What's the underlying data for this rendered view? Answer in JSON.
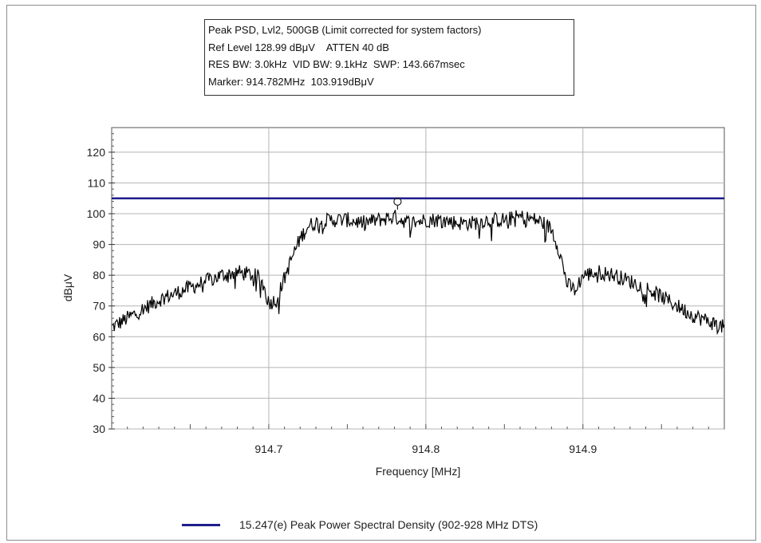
{
  "info": {
    "lines": [
      "Peak PSD, Lvl2, 500GB (Limit corrected for system factors)",
      "Ref Level 128.99 dBμV    ATTEN 40 dB",
      "RES BW: 3.0kHz  VID BW: 9.1kHz  SWP: 143.667msec",
      "Marker: 914.782MHz  103.919dBμV"
    ]
  },
  "legend": {
    "label": "15.247(e) Peak Power Spectral Density (902-928 MHz DTS)",
    "color": "#1e1e8c"
  },
  "chart_data": {
    "type": "line",
    "xlabel": "Frequency [MHz]",
    "ylabel": "dBμV",
    "xlim": [
      914.6,
      914.99
    ],
    "ylim": [
      30,
      128
    ],
    "grid": true,
    "x_tick_values": [
      914.7,
      914.8,
      914.9
    ],
    "x_tick_labels": [
      "914.7",
      "914.8",
      "914.9"
    ],
    "y_tick_values": [
      30,
      40,
      50,
      60,
      70,
      80,
      90,
      100,
      110,
      120
    ],
    "y_tick_labels": [
      "30",
      "40",
      "50",
      "60",
      "70",
      "80",
      "90",
      "100",
      "110",
      "120"
    ],
    "trace_color": "#000000",
    "series": [
      {
        "x": [
          914.6,
          914.61,
          914.62,
          914.63,
          914.64,
          914.65,
          914.66,
          914.67,
          914.68,
          914.69,
          914.695,
          914.7,
          914.705,
          914.71,
          914.715,
          914.72,
          914.725,
          914.73,
          914.74,
          914.75,
          914.76,
          914.77,
          914.78,
          914.79,
          914.8,
          914.81,
          914.82,
          914.83,
          914.84,
          914.85,
          914.86,
          914.87,
          914.875,
          914.88,
          914.885,
          914.89,
          914.895,
          914.9,
          914.91,
          914.92,
          914.93,
          914.94,
          914.95,
          914.96,
          914.97,
          914.98,
          914.99
        ],
        "y": [
          63,
          66,
          69,
          72,
          74,
          76,
          78,
          80,
          81,
          80,
          79,
          71,
          72,
          79,
          86,
          92,
          96,
          97,
          98,
          98,
          97,
          98,
          99,
          97,
          98,
          98,
          97,
          97,
          98,
          98,
          99,
          98,
          97,
          95,
          88,
          77,
          75,
          80,
          81,
          80,
          78,
          76,
          73,
          70,
          67,
          65,
          63
        ]
      },
      {
        "name": "15.247(e) Peak Power Spectral Density (902-928 MHz DTS)",
        "x": [
          914.6,
          914.99
        ],
        "y": [
          105,
          105
        ]
      }
    ],
    "marker": {
      "x": 914.782,
      "y": 103.919
    }
  }
}
